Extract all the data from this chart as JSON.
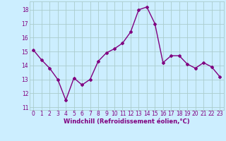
{
  "x": [
    0,
    1,
    2,
    3,
    4,
    5,
    6,
    7,
    8,
    9,
    10,
    11,
    12,
    13,
    14,
    15,
    16,
    17,
    18,
    19,
    20,
    21,
    22,
    23
  ],
  "y": [
    15.1,
    14.4,
    13.8,
    13.0,
    11.5,
    13.1,
    12.6,
    13.0,
    14.3,
    14.9,
    15.2,
    15.6,
    16.4,
    18.0,
    18.2,
    17.0,
    14.2,
    14.7,
    14.7,
    14.1,
    13.8,
    14.2,
    13.9,
    13.2
  ],
  "line_color": "#800080",
  "marker": "D",
  "marker_size": 2.0,
  "bg_color": "#cceeff",
  "grid_color": "#aacccc",
  "xlabel": "Windchill (Refroidissement éolien,°C)",
  "ylim": [
    10.8,
    18.6
  ],
  "xlim": [
    -0.5,
    23.5
  ],
  "yticks": [
    11,
    12,
    13,
    14,
    15,
    16,
    17,
    18
  ],
  "xticks": [
    0,
    1,
    2,
    3,
    4,
    5,
    6,
    7,
    8,
    9,
    10,
    11,
    12,
    13,
    14,
    15,
    16,
    17,
    18,
    19,
    20,
    21,
    22,
    23
  ],
  "tick_color": "#800080",
  "line_width": 1.0,
  "xlabel_fontsize": 6.0,
  "tick_fontsize": 5.5
}
